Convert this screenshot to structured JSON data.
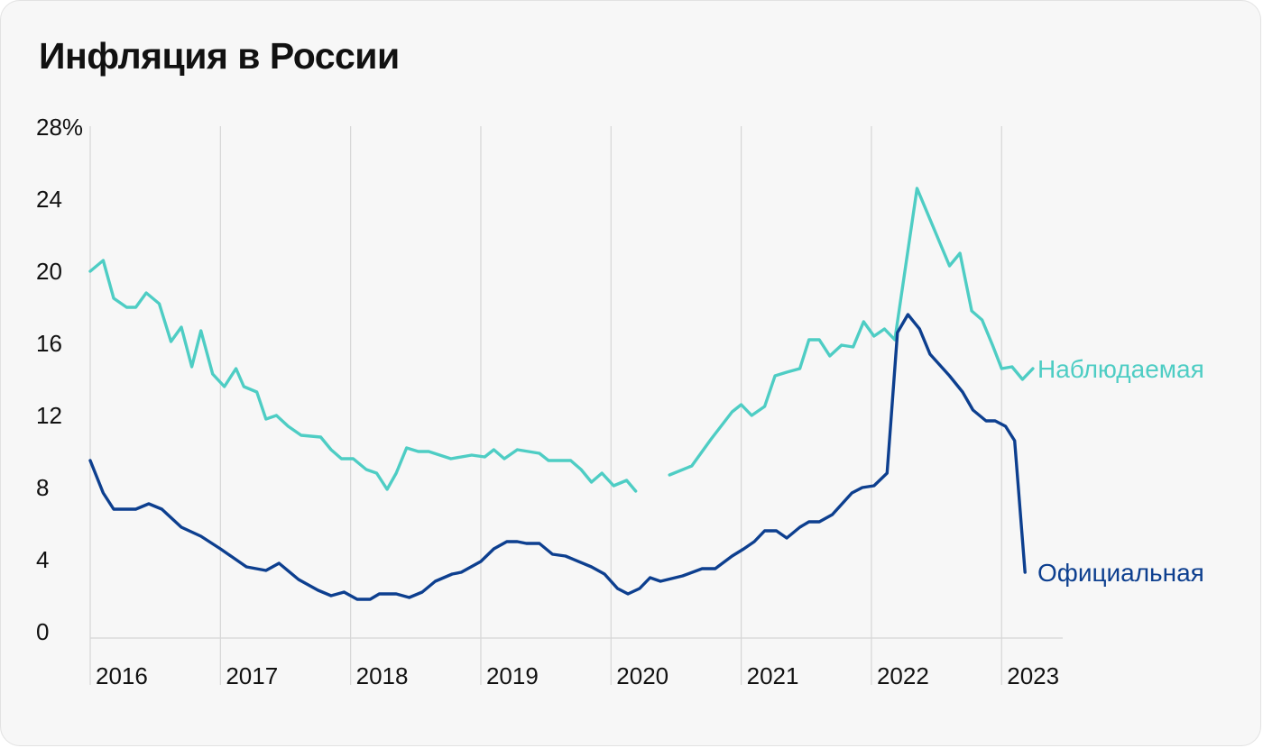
{
  "title": "Инфляция в России",
  "chart_data": {
    "type": "line",
    "title": "Инфляция в России",
    "xlabel": "",
    "ylabel": "",
    "ylim": [
      0,
      28
    ],
    "xlim": [
      2016.0,
      2023.4
    ],
    "grid": "vertical lines at year marks",
    "legend": "inline labels at right end of series",
    "y_ticks": [
      "0",
      "4",
      "8",
      "12",
      "16",
      "20",
      "24",
      "28%"
    ],
    "y_tick_values": [
      0,
      4,
      8,
      12,
      16,
      20,
      24,
      28
    ],
    "x_ticks": [
      "2016",
      "2017",
      "2018",
      "2019",
      "2020",
      "2021",
      "2022",
      "2023"
    ],
    "x_tick_values": [
      2016,
      2017,
      2018,
      2019,
      2020,
      2021,
      2022,
      2023
    ],
    "series": [
      {
        "name": "Наблюдаемая",
        "color": "#4ecdc4",
        "segments": [
          [
            [
              2016.0,
              20.0
            ],
            [
              2016.1,
              20.6
            ],
            [
              2016.18,
              18.5
            ],
            [
              2016.28,
              18.0
            ],
            [
              2016.35,
              18.0
            ],
            [
              2016.43,
              18.8
            ],
            [
              2016.53,
              18.2
            ],
            [
              2016.62,
              16.1
            ],
            [
              2016.7,
              16.9
            ],
            [
              2016.78,
              14.7
            ],
            [
              2016.85,
              16.7
            ],
            [
              2016.94,
              14.3
            ],
            [
              2017.03,
              13.6
            ],
            [
              2017.12,
              14.6
            ],
            [
              2017.18,
              13.6
            ],
            [
              2017.28,
              13.3
            ],
            [
              2017.35,
              11.8
            ],
            [
              2017.43,
              12.0
            ],
            [
              2017.52,
              11.4
            ],
            [
              2017.62,
              10.9
            ],
            [
              2017.77,
              10.8
            ],
            [
              2017.85,
              10.1
            ],
            [
              2017.93,
              9.6
            ],
            [
              2018.02,
              9.6
            ],
            [
              2018.12,
              9.0
            ],
            [
              2018.2,
              8.8
            ],
            [
              2018.28,
              7.9
            ],
            [
              2018.35,
              8.8
            ],
            [
              2018.43,
              10.2
            ],
            [
              2018.52,
              10.0
            ],
            [
              2018.6,
              10.0
            ],
            [
              2018.77,
              9.6
            ],
            [
              2018.93,
              9.8
            ],
            [
              2019.03,
              9.7
            ],
            [
              2019.1,
              10.1
            ],
            [
              2019.18,
              9.6
            ],
            [
              2019.28,
              10.1
            ],
            [
              2019.45,
              9.9
            ],
            [
              2019.52,
              9.5
            ],
            [
              2019.69,
              9.5
            ],
            [
              2019.77,
              9.0
            ],
            [
              2019.85,
              8.3
            ],
            [
              2019.93,
              8.8
            ],
            [
              2020.02,
              8.1
            ],
            [
              2020.12,
              8.4
            ],
            [
              2020.19,
              7.8
            ]
          ],
          [
            [
              2020.45,
              8.7
            ],
            [
              2020.62,
              9.2
            ],
            [
              2020.77,
              10.7
            ],
            [
              2020.93,
              12.2
            ],
            [
              2021.0,
              12.6
            ],
            [
              2021.08,
              12.0
            ],
            [
              2021.18,
              12.5
            ],
            [
              2021.26,
              14.2
            ],
            [
              2021.35,
              14.4
            ],
            [
              2021.45,
              14.6
            ],
            [
              2021.52,
              16.2
            ],
            [
              2021.6,
              16.2
            ],
            [
              2021.68,
              15.3
            ],
            [
              2021.77,
              15.9
            ],
            [
              2021.86,
              15.8
            ],
            [
              2021.94,
              17.2
            ],
            [
              2022.02,
              16.4
            ],
            [
              2022.1,
              16.8
            ],
            [
              2022.18,
              16.2
            ],
            [
              2022.35,
              24.6
            ],
            [
              2022.6,
              20.3
            ],
            [
              2022.68,
              21.0
            ],
            [
              2022.77,
              17.8
            ],
            [
              2022.85,
              17.3
            ],
            [
              2022.93,
              15.9
            ],
            [
              2023.0,
              14.6
            ],
            [
              2023.08,
              14.7
            ],
            [
              2023.16,
              14.0
            ],
            [
              2023.24,
              14.6
            ]
          ]
        ]
      },
      {
        "name": "Официальная",
        "color": "#0d3f8f",
        "segments": [
          [
            [
              2016.0,
              9.5
            ],
            [
              2016.1,
              7.7
            ],
            [
              2016.18,
              6.8
            ],
            [
              2016.35,
              6.8
            ],
            [
              2016.45,
              7.1
            ],
            [
              2016.55,
              6.8
            ],
            [
              2016.7,
              5.8
            ],
            [
              2016.85,
              5.3
            ],
            [
              2017.0,
              4.6
            ],
            [
              2017.1,
              4.1
            ],
            [
              2017.2,
              3.6
            ],
            [
              2017.35,
              3.4
            ],
            [
              2017.45,
              3.8
            ],
            [
              2017.6,
              2.9
            ],
            [
              2017.75,
              2.3
            ],
            [
              2017.85,
              2.0
            ],
            [
              2017.95,
              2.2
            ],
            [
              2018.05,
              1.8
            ],
            [
              2018.15,
              1.8
            ],
            [
              2018.22,
              2.1
            ],
            [
              2018.35,
              2.1
            ],
            [
              2018.45,
              1.9
            ],
            [
              2018.55,
              2.2
            ],
            [
              2018.65,
              2.8
            ],
            [
              2018.78,
              3.2
            ],
            [
              2018.85,
              3.3
            ],
            [
              2019.0,
              3.9
            ],
            [
              2019.1,
              4.6
            ],
            [
              2019.2,
              5.0
            ],
            [
              2019.28,
              5.0
            ],
            [
              2019.35,
              4.9
            ],
            [
              2019.45,
              4.9
            ],
            [
              2019.55,
              4.3
            ],
            [
              2019.65,
              4.2
            ],
            [
              2019.85,
              3.6
            ],
            [
              2019.95,
              3.2
            ],
            [
              2020.05,
              2.4
            ],
            [
              2020.13,
              2.1
            ],
            [
              2020.22,
              2.4
            ],
            [
              2020.3,
              3.0
            ],
            [
              2020.38,
              2.8
            ],
            [
              2020.55,
              3.1
            ],
            [
              2020.7,
              3.5
            ],
            [
              2020.8,
              3.5
            ],
            [
              2020.93,
              4.2
            ],
            [
              2021.02,
              4.6
            ],
            [
              2021.1,
              5.0
            ],
            [
              2021.18,
              5.6
            ],
            [
              2021.27,
              5.6
            ],
            [
              2021.35,
              5.2
            ],
            [
              2021.45,
              5.8
            ],
            [
              2021.52,
              6.1
            ],
            [
              2021.6,
              6.1
            ],
            [
              2021.7,
              6.5
            ],
            [
              2021.85,
              7.7
            ],
            [
              2021.93,
              8.0
            ],
            [
              2022.02,
              8.1
            ],
            [
              2022.12,
              8.8
            ],
            [
              2022.2,
              16.6
            ],
            [
              2022.28,
              17.6
            ],
            [
              2022.37,
              16.8
            ],
            [
              2022.45,
              15.4
            ],
            [
              2022.6,
              14.2
            ],
            [
              2022.7,
              13.3
            ],
            [
              2022.78,
              12.3
            ],
            [
              2022.88,
              11.7
            ],
            [
              2022.95,
              11.7
            ],
            [
              2023.03,
              11.4
            ],
            [
              2023.1,
              10.6
            ],
            [
              2023.18,
              3.3
            ]
          ]
        ]
      }
    ]
  }
}
